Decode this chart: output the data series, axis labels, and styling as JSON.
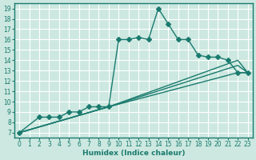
{
  "xlabel": "Humidex (Indice chaleur)",
  "bg_color": "#cce8e0",
  "grid_color": "#ffffff",
  "line_color": "#1a7a6e",
  "xlim": [
    -0.5,
    23.5
  ],
  "ylim": [
    6.5,
    19.5
  ],
  "xticks": [
    0,
    1,
    2,
    3,
    4,
    5,
    6,
    7,
    8,
    9,
    10,
    11,
    12,
    13,
    14,
    15,
    16,
    17,
    18,
    19,
    20,
    21,
    22,
    23
  ],
  "yticks": [
    7,
    8,
    9,
    10,
    11,
    12,
    13,
    14,
    15,
    16,
    17,
    18,
    19
  ],
  "series": [
    {
      "x": [
        0,
        2,
        3,
        4,
        5,
        6,
        7,
        8,
        9,
        10,
        11,
        12,
        13,
        14,
        15,
        16,
        17,
        18,
        19,
        20,
        21,
        22,
        23
      ],
      "y": [
        7.0,
        8.5,
        8.5,
        8.5,
        9.0,
        9.0,
        9.5,
        9.5,
        9.5,
        16.0,
        16.0,
        16.2,
        16.0,
        19.0,
        17.5,
        16.0,
        16.0,
        14.5,
        14.3,
        14.3,
        14.0,
        12.8,
        12.8
      ],
      "has_marker": true,
      "markersize": 3,
      "linewidth": 1.0
    },
    {
      "x": [
        0,
        9,
        22,
        23
      ],
      "y": [
        7.0,
        9.5,
        14.0,
        12.8
      ],
      "has_marker": false,
      "markersize": 0,
      "linewidth": 1.0
    },
    {
      "x": [
        0,
        9,
        22,
        23
      ],
      "y": [
        7.0,
        9.5,
        13.5,
        12.8
      ],
      "has_marker": false,
      "markersize": 0,
      "linewidth": 1.0
    },
    {
      "x": [
        0,
        9,
        22,
        23
      ],
      "y": [
        7.0,
        9.5,
        12.8,
        12.8
      ],
      "has_marker": false,
      "markersize": 0,
      "linewidth": 1.0
    }
  ]
}
